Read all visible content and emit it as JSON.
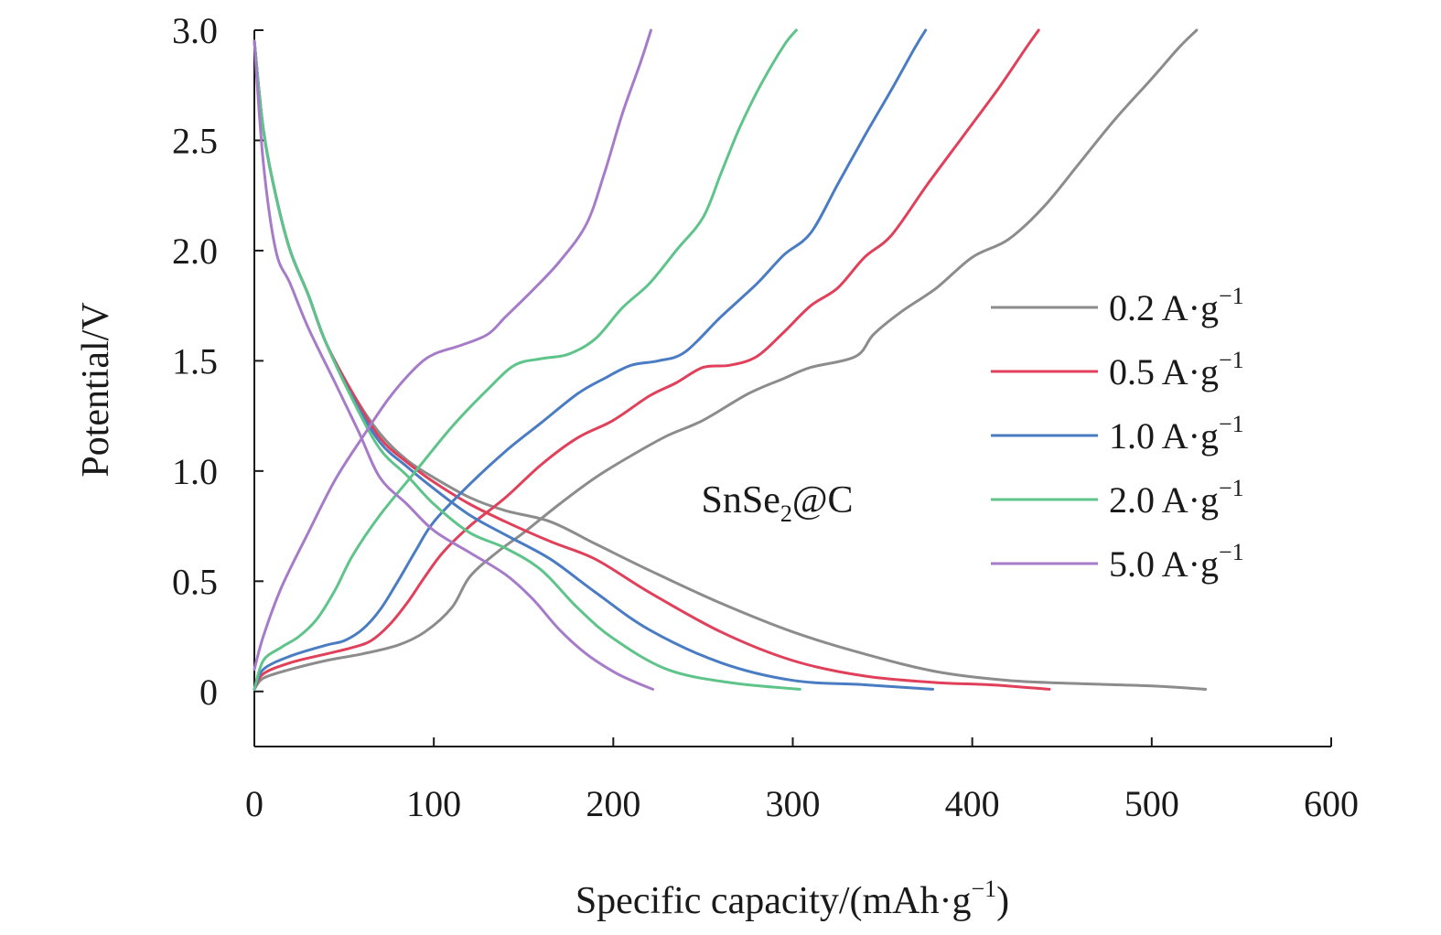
{
  "chart_data": {
    "type": "line",
    "title": "",
    "xlabel": "Specific capacity/(mAh·g",
    "xlabel_sup": "−1",
    "xlabel_tail": ")",
    "ylabel": "Potential/V",
    "xlim": [
      0,
      600
    ],
    "ylim": [
      -0.25,
      3.0
    ],
    "x_ticks": [
      0,
      100,
      200,
      300,
      400,
      500,
      600
    ],
    "x_tick_labels": [
      "0",
      "100",
      "200",
      "300",
      "400",
      "500",
      "600"
    ],
    "y_ticks": [
      0,
      0.5,
      1.0,
      1.5,
      2.0,
      2.5,
      3.0
    ],
    "y_tick_labels": [
      "0",
      "0.5",
      "1.0",
      "1.5",
      "2.0",
      "2.5",
      "3.0"
    ],
    "grid": false,
    "legend_position": "right",
    "annotation": {
      "text": "SnSe",
      "sub": "2",
      "tail": "@C",
      "x": 300,
      "y": 0.87
    },
    "series": [
      {
        "name": "0.2 A·g",
        "name_sup": "−1",
        "color": "#8c8c8c",
        "discharge": [
          [
            0,
            2.95
          ],
          [
            5,
            2.55
          ],
          [
            12,
            2.25
          ],
          [
            20,
            2.0
          ],
          [
            30,
            1.8
          ],
          [
            40,
            1.58
          ],
          [
            55,
            1.35
          ],
          [
            70,
            1.17
          ],
          [
            85,
            1.05
          ],
          [
            100,
            0.97
          ],
          [
            120,
            0.88
          ],
          [
            140,
            0.82
          ],
          [
            165,
            0.77
          ],
          [
            190,
            0.67
          ],
          [
            220,
            0.55
          ],
          [
            260,
            0.4
          ],
          [
            300,
            0.27
          ],
          [
            340,
            0.17
          ],
          [
            380,
            0.09
          ],
          [
            420,
            0.05
          ],
          [
            460,
            0.035
          ],
          [
            500,
            0.025
          ],
          [
            530,
            0.01
          ]
        ],
        "charge": [
          [
            0,
            0.01
          ],
          [
            5,
            0.06
          ],
          [
            20,
            0.1
          ],
          [
            40,
            0.14
          ],
          [
            60,
            0.17
          ],
          [
            80,
            0.21
          ],
          [
            95,
            0.27
          ],
          [
            110,
            0.38
          ],
          [
            120,
            0.52
          ],
          [
            135,
            0.63
          ],
          [
            150,
            0.72
          ],
          [
            170,
            0.85
          ],
          [
            190,
            0.97
          ],
          [
            210,
            1.07
          ],
          [
            230,
            1.16
          ],
          [
            250,
            1.23
          ],
          [
            275,
            1.35
          ],
          [
            295,
            1.42
          ],
          [
            310,
            1.47
          ],
          [
            335,
            1.52
          ],
          [
            345,
            1.62
          ],
          [
            360,
            1.72
          ],
          [
            380,
            1.83
          ],
          [
            400,
            1.97
          ],
          [
            420,
            2.05
          ],
          [
            440,
            2.2
          ],
          [
            460,
            2.4
          ],
          [
            480,
            2.6
          ],
          [
            500,
            2.78
          ],
          [
            515,
            2.92
          ],
          [
            525,
            3.0
          ]
        ]
      },
      {
        "name": "0.5 A·g",
        "name_sup": "−1",
        "color": "#e0405a",
        "discharge": [
          [
            0,
            2.95
          ],
          [
            5,
            2.55
          ],
          [
            12,
            2.25
          ],
          [
            20,
            2.0
          ],
          [
            30,
            1.8
          ],
          [
            40,
            1.58
          ],
          [
            55,
            1.35
          ],
          [
            70,
            1.15
          ],
          [
            85,
            1.04
          ],
          [
            100,
            0.95
          ],
          [
            120,
            0.85
          ],
          [
            140,
            0.77
          ],
          [
            165,
            0.68
          ],
          [
            190,
            0.6
          ],
          [
            220,
            0.45
          ],
          [
            260,
            0.27
          ],
          [
            300,
            0.14
          ],
          [
            340,
            0.07
          ],
          [
            380,
            0.04
          ],
          [
            410,
            0.03
          ],
          [
            443,
            0.01
          ]
        ],
        "charge": [
          [
            0,
            0.01
          ],
          [
            5,
            0.08
          ],
          [
            20,
            0.13
          ],
          [
            40,
            0.17
          ],
          [
            55,
            0.2
          ],
          [
            65,
            0.23
          ],
          [
            75,
            0.3
          ],
          [
            85,
            0.4
          ],
          [
            95,
            0.52
          ],
          [
            105,
            0.63
          ],
          [
            120,
            0.75
          ],
          [
            140,
            0.88
          ],
          [
            160,
            1.03
          ],
          [
            180,
            1.15
          ],
          [
            200,
            1.23
          ],
          [
            220,
            1.34
          ],
          [
            235,
            1.4
          ],
          [
            250,
            1.47
          ],
          [
            265,
            1.48
          ],
          [
            280,
            1.52
          ],
          [
            295,
            1.63
          ],
          [
            310,
            1.75
          ],
          [
            325,
            1.83
          ],
          [
            340,
            1.97
          ],
          [
            355,
            2.07
          ],
          [
            375,
            2.3
          ],
          [
            395,
            2.52
          ],
          [
            415,
            2.74
          ],
          [
            430,
            2.92
          ],
          [
            437,
            3.0
          ]
        ]
      },
      {
        "name": "1.0 A·g",
        "name_sup": "−1",
        "color": "#4a7cc4",
        "discharge": [
          [
            0,
            2.95
          ],
          [
            5,
            2.55
          ],
          [
            12,
            2.25
          ],
          [
            20,
            2.0
          ],
          [
            30,
            1.8
          ],
          [
            40,
            1.58
          ],
          [
            55,
            1.33
          ],
          [
            70,
            1.13
          ],
          [
            85,
            1.02
          ],
          [
            100,
            0.92
          ],
          [
            120,
            0.8
          ],
          [
            140,
            0.71
          ],
          [
            165,
            0.6
          ],
          [
            190,
            0.45
          ],
          [
            220,
            0.28
          ],
          [
            260,
            0.13
          ],
          [
            300,
            0.05
          ],
          [
            340,
            0.03
          ],
          [
            378,
            0.01
          ]
        ],
        "charge": [
          [
            0,
            0.01
          ],
          [
            5,
            0.1
          ],
          [
            20,
            0.16
          ],
          [
            40,
            0.21
          ],
          [
            50,
            0.23
          ],
          [
            60,
            0.28
          ],
          [
            70,
            0.37
          ],
          [
            80,
            0.5
          ],
          [
            90,
            0.64
          ],
          [
            100,
            0.77
          ],
          [
            120,
            0.94
          ],
          [
            140,
            1.09
          ],
          [
            160,
            1.22
          ],
          [
            180,
            1.35
          ],
          [
            195,
            1.42
          ],
          [
            210,
            1.48
          ],
          [
            225,
            1.5
          ],
          [
            240,
            1.54
          ],
          [
            260,
            1.7
          ],
          [
            280,
            1.85
          ],
          [
            295,
            1.98
          ],
          [
            310,
            2.08
          ],
          [
            325,
            2.3
          ],
          [
            340,
            2.52
          ],
          [
            355,
            2.73
          ],
          [
            368,
            2.92
          ],
          [
            374,
            3.0
          ]
        ]
      },
      {
        "name": "2.0 A·g",
        "name_sup": "−1",
        "color": "#5ec48a",
        "discharge": [
          [
            0,
            2.95
          ],
          [
            5,
            2.55
          ],
          [
            12,
            2.25
          ],
          [
            20,
            2.0
          ],
          [
            30,
            1.8
          ],
          [
            40,
            1.58
          ],
          [
            55,
            1.32
          ],
          [
            70,
            1.1
          ],
          [
            85,
            0.98
          ],
          [
            100,
            0.85
          ],
          [
            120,
            0.72
          ],
          [
            140,
            0.65
          ],
          [
            160,
            0.55
          ],
          [
            180,
            0.38
          ],
          [
            200,
            0.24
          ],
          [
            230,
            0.1
          ],
          [
            265,
            0.04
          ],
          [
            304,
            0.01
          ]
        ],
        "charge": [
          [
            0,
            0.01
          ],
          [
            5,
            0.14
          ],
          [
            15,
            0.2
          ],
          [
            25,
            0.25
          ],
          [
            35,
            0.33
          ],
          [
            45,
            0.46
          ],
          [
            55,
            0.62
          ],
          [
            70,
            0.8
          ],
          [
            90,
            1.0
          ],
          [
            110,
            1.2
          ],
          [
            130,
            1.37
          ],
          [
            145,
            1.48
          ],
          [
            160,
            1.51
          ],
          [
            175,
            1.53
          ],
          [
            190,
            1.6
          ],
          [
            205,
            1.74
          ],
          [
            220,
            1.85
          ],
          [
            235,
            2.0
          ],
          [
            250,
            2.15
          ],
          [
            260,
            2.35
          ],
          [
            270,
            2.55
          ],
          [
            282,
            2.75
          ],
          [
            295,
            2.93
          ],
          [
            302,
            3.0
          ]
        ]
      },
      {
        "name": "5.0 A·g",
        "name_sup": "−1",
        "color": "#a67cc8",
        "discharge": [
          [
            0,
            2.95
          ],
          [
            5,
            2.4
          ],
          [
            12,
            2.0
          ],
          [
            20,
            1.85
          ],
          [
            30,
            1.65
          ],
          [
            45,
            1.4
          ],
          [
            58,
            1.18
          ],
          [
            70,
            0.97
          ],
          [
            85,
            0.85
          ],
          [
            100,
            0.73
          ],
          [
            120,
            0.63
          ],
          [
            140,
            0.53
          ],
          [
            155,
            0.42
          ],
          [
            170,
            0.28
          ],
          [
            185,
            0.17
          ],
          [
            200,
            0.09
          ],
          [
            210,
            0.05
          ],
          [
            222,
            0.01
          ]
        ],
        "charge": [
          [
            0,
            0.1
          ],
          [
            5,
            0.25
          ],
          [
            15,
            0.47
          ],
          [
            30,
            0.72
          ],
          [
            45,
            0.96
          ],
          [
            60,
            1.15
          ],
          [
            75,
            1.33
          ],
          [
            90,
            1.47
          ],
          [
            100,
            1.53
          ],
          [
            115,
            1.57
          ],
          [
            130,
            1.62
          ],
          [
            140,
            1.7
          ],
          [
            155,
            1.82
          ],
          [
            170,
            1.95
          ],
          [
            185,
            2.12
          ],
          [
            195,
            2.35
          ],
          [
            205,
            2.62
          ],
          [
            215,
            2.85
          ],
          [
            221,
            3.0
          ]
        ]
      }
    ]
  }
}
